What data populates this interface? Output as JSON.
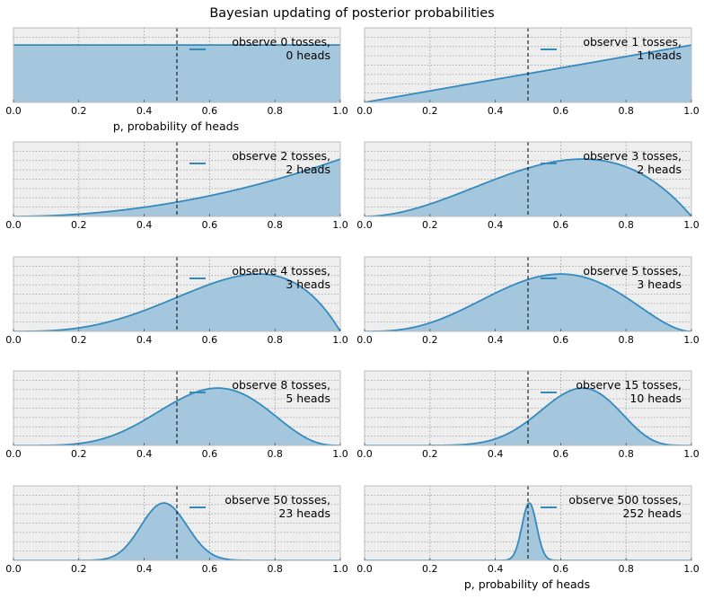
{
  "figure": {
    "title": "Bayesian updating of posterior probabilities",
    "xlabel_left": "p, probability of heads",
    "xlabel_right": "p, probability of heads"
  },
  "colors": {
    "line": "#348ABD",
    "fill": "#A5C7DD",
    "axes_bg": "#EEEEEE",
    "grid": "#999999",
    "vline": "#000000"
  },
  "chart_data": [
    {
      "type": "area",
      "trials": 0,
      "heads": 0,
      "legend": [
        "observe 0 tosses,",
        " 0 heads"
      ],
      "xlim": [
        0,
        1
      ],
      "xticks": [
        "0.0",
        "0.2",
        "0.4",
        "0.6",
        "0.8",
        "1.0"
      ],
      "grid": true,
      "vline_x": 0.5,
      "legend_loc": "upper right"
    },
    {
      "type": "area",
      "trials": 1,
      "heads": 1,
      "legend": [
        "observe 1 tosses,",
        " 1 heads"
      ],
      "xlim": [
        0,
        1
      ],
      "xticks": [
        "0.0",
        "0.2",
        "0.4",
        "0.6",
        "0.8",
        "1.0"
      ],
      "grid": true,
      "vline_x": 0.5,
      "legend_loc": "upper right"
    },
    {
      "type": "area",
      "trials": 2,
      "heads": 2,
      "legend": [
        "observe 2 tosses,",
        " 2 heads"
      ],
      "xlim": [
        0,
        1
      ],
      "xticks": [
        "0.0",
        "0.2",
        "0.4",
        "0.6",
        "0.8",
        "1.0"
      ],
      "grid": true,
      "vline_x": 0.5,
      "legend_loc": "upper right"
    },
    {
      "type": "area",
      "trials": 3,
      "heads": 2,
      "legend": [
        "observe 3 tosses,",
        " 2 heads"
      ],
      "xlim": [
        0,
        1
      ],
      "xticks": [
        "0.0",
        "0.2",
        "0.4",
        "0.6",
        "0.8",
        "1.0"
      ],
      "grid": true,
      "vline_x": 0.5,
      "legend_loc": "upper right"
    },
    {
      "type": "area",
      "trials": 4,
      "heads": 3,
      "legend": [
        "observe 4 tosses,",
        " 3 heads"
      ],
      "xlim": [
        0,
        1
      ],
      "xticks": [
        "0.0",
        "0.2",
        "0.4",
        "0.6",
        "0.8",
        "1.0"
      ],
      "grid": true,
      "vline_x": 0.5,
      "legend_loc": "upper right"
    },
    {
      "type": "area",
      "trials": 5,
      "heads": 3,
      "legend": [
        "observe 5 tosses,",
        " 3 heads"
      ],
      "xlim": [
        0,
        1
      ],
      "xticks": [
        "0.0",
        "0.2",
        "0.4",
        "0.6",
        "0.8",
        "1.0"
      ],
      "grid": true,
      "vline_x": 0.5,
      "legend_loc": "upper right"
    },
    {
      "type": "area",
      "trials": 8,
      "heads": 5,
      "legend": [
        "observe 8 tosses,",
        " 5 heads"
      ],
      "xlim": [
        0,
        1
      ],
      "xticks": [
        "0.0",
        "0.2",
        "0.4",
        "0.6",
        "0.8",
        "1.0"
      ],
      "grid": true,
      "vline_x": 0.5,
      "legend_loc": "upper right"
    },
    {
      "type": "area",
      "trials": 15,
      "heads": 10,
      "legend": [
        "observe 15 tosses,",
        " 10 heads"
      ],
      "xlim": [
        0,
        1
      ],
      "xticks": [
        "0.0",
        "0.2",
        "0.4",
        "0.6",
        "0.8",
        "1.0"
      ],
      "grid": true,
      "vline_x": 0.5,
      "legend_loc": "upper right"
    },
    {
      "type": "area",
      "trials": 50,
      "heads": 23,
      "legend": [
        "observe 50 tosses,",
        " 23 heads"
      ],
      "xlim": [
        0,
        1
      ],
      "xticks": [
        "0.0",
        "0.2",
        "0.4",
        "0.6",
        "0.8",
        "1.0"
      ],
      "grid": true,
      "vline_x": 0.5,
      "legend_loc": "upper right"
    },
    {
      "type": "area",
      "trials": 500,
      "heads": 252,
      "legend": [
        "observe 500 tosses,",
        " 252 heads"
      ],
      "xlim": [
        0,
        1
      ],
      "xticks": [
        "0.0",
        "0.2",
        "0.4",
        "0.6",
        "0.8",
        "1.0"
      ],
      "grid": true,
      "vline_x": 0.5,
      "legend_loc": "upper right"
    }
  ]
}
